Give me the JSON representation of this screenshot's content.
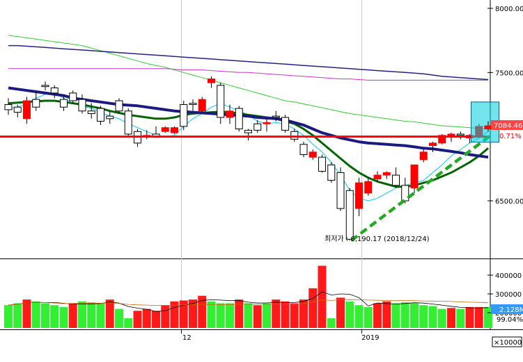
{
  "colors": {
    "up": "#ff0000",
    "down": "#ffffff",
    "down_border": "#000000",
    "vol_up": "#ff1a1a",
    "vol_down": "#33ee33",
    "hline": "#ff0000",
    "trend": "#22aa22",
    "ma5": "#00c8ff",
    "ma20": "#006400",
    "ma60_dark": "#1a1a80",
    "ma120": "#33cc33",
    "ma240": "#cc33cc",
    "ma_dark_long": "#222288",
    "price_tag_bg": "#ff4444",
    "vol_tag_bg": "#3399ff"
  },
  "labels": {
    "low_annotation": "최저가 : 6,190.17 (2018/12/24)",
    "price_tag": "7084.46",
    "price_change": "0.71%",
    "vol_tag": "2.128M",
    "vol_pct": "99.04%",
    "vol_unit": "×10000",
    "x_tick_12": "12",
    "x_tick_2019": "2019"
  },
  "chart_data": [
    {
      "type": "candlestick",
      "y_ticks": [
        "8000.00",
        "7500.00",
        "6500.00"
      ],
      "y_ticks_values": [
        8000,
        7500,
        6500
      ],
      "ylim": [
        6100,
        8100
      ],
      "hline": 7000,
      "trendline": [
        [
          0,
          6190
        ],
        [
          1,
          6980
        ]
      ],
      "low_point": 6190.17,
      "x_ticks": [
        "12",
        "2019"
      ],
      "candles": [
        [
          7250,
          7300,
          7170,
          7210
        ],
        [
          7230,
          7250,
          7150,
          7190
        ],
        [
          7140,
          7310,
          7100,
          7280
        ],
        [
          7290,
          7350,
          7200,
          7230
        ],
        [
          7400,
          7430,
          7360,
          7390
        ],
        [
          7380,
          7400,
          7300,
          7340
        ],
        [
          7290,
          7320,
          7200,
          7230
        ],
        [
          7340,
          7360,
          7260,
          7280
        ],
        [
          7290,
          7330,
          7180,
          7200
        ],
        [
          7200,
          7260,
          7140,
          7180
        ],
        [
          7220,
          7240,
          7090,
          7120
        ],
        [
          7160,
          7200,
          7100,
          7140
        ],
        [
          7280,
          7300,
          7180,
          7200
        ],
        [
          7200,
          7220,
          7000,
          7020
        ],
        [
          7040,
          7060,
          6920,
          6950
        ],
        [
          7000,
          7050,
          6980,
          7010
        ],
        [
          7020,
          7080,
          6990,
          6995
        ],
        [
          7040,
          7080,
          7030,
          7070
        ],
        [
          7030,
          7080,
          7020,
          7070
        ],
        [
          7250,
          7280,
          7050,
          7080
        ],
        [
          7260,
          7290,
          7200,
          7250
        ],
        [
          7200,
          7310,
          7190,
          7290
        ],
        [
          7420,
          7470,
          7380,
          7450
        ],
        [
          7400,
          7420,
          7100,
          7150
        ],
        [
          7150,
          7250,
          7100,
          7200
        ],
        [
          7220,
          7240,
          7040,
          7060
        ],
        [
          7050,
          7060,
          6970,
          7030
        ],
        [
          7100,
          7130,
          7030,
          7050
        ],
        [
          7100,
          7140,
          7040,
          7110
        ],
        [
          7160,
          7200,
          7120,
          7150
        ],
        [
          7150,
          7170,
          7030,
          7050
        ],
        [
          7040,
          7060,
          6960,
          6980
        ],
        [
          6940,
          6960,
          6840,
          6860
        ],
        [
          6840,
          6900,
          6820,
          6880
        ],
        [
          6840,
          6860,
          6720,
          6730
        ],
        [
          6780,
          6800,
          6640,
          6660
        ],
        [
          6720,
          6760,
          6420,
          6440
        ],
        [
          6580,
          6600,
          6190,
          6200
        ],
        [
          6440,
          6680,
          6380,
          6640
        ],
        [
          6560,
          6680,
          6540,
          6650
        ],
        [
          6670,
          6730,
          6650,
          6700
        ],
        [
          6700,
          6730,
          6670,
          6720
        ],
        [
          6700,
          6760,
          6600,
          6620
        ],
        [
          6620,
          6680,
          6480,
          6500
        ],
        [
          6600,
          6780,
          6560,
          6780
        ],
        [
          6820,
          6900,
          6800,
          6880
        ],
        [
          6930,
          6960,
          6880,
          6950
        ],
        [
          6950,
          7020,
          6940,
          7010
        ],
        [
          7000,
          7030,
          6960,
          7020
        ],
        [
          7020,
          7040,
          6980,
          7010
        ],
        [
          6990,
          7020,
          6950,
          7010
        ],
        [
          7000,
          7100,
          6990,
          7080
        ],
        [
          7060,
          7120,
          7040,
          7084
        ]
      ],
      "ma_series": [
        {
          "color": "ma5",
          "values": [
            7220,
            7230,
            7260,
            7300,
            7330,
            7340,
            7300,
            7260,
            7240,
            7220,
            7190,
            7160,
            7140,
            7100,
            7070,
            7040,
            7010,
            7000,
            7010,
            7080,
            7140,
            7180,
            7230,
            7260,
            7230,
            7200,
            7170,
            7120,
            7100,
            7110,
            7100,
            7060,
            7010,
            6940,
            6880,
            6800,
            6700,
            6580,
            6520,
            6500,
            6520,
            6560,
            6600,
            6620,
            6640,
            6660,
            6720,
            6780,
            6850,
            6900,
            6950,
            6990,
            7040
          ]
        },
        {
          "color": "ma20",
          "values": [
            7260,
            7265,
            7270,
            7275,
            7280,
            7280,
            7270,
            7260,
            7250,
            7235,
            7220,
            7200,
            7185,
            7170,
            7160,
            7150,
            7140,
            7140,
            7150,
            7170,
            7180,
            7185,
            7190,
            7195,
            7190,
            7180,
            7170,
            7160,
            7150,
            7140,
            7120,
            7100,
            7060,
            7010,
            6950,
            6890,
            6830,
            6770,
            6720,
            6680,
            6650,
            6630,
            6610,
            6610,
            6620,
            6640,
            6660,
            6690,
            6720,
            6760,
            6800,
            6850,
            6910
          ]
        },
        {
          "color": "ma60_dark",
          "values": [
            7380,
            7370,
            7360,
            7350,
            7340,
            7330,
            7320,
            7300,
            7290,
            7280,
            7270,
            7260,
            7250,
            7245,
            7240,
            7230,
            7220,
            7210,
            7200,
            7195,
            7190,
            7185,
            7180,
            7175,
            7170,
            7165,
            7160,
            7150,
            7145,
            7140,
            7130,
            7110,
            7090,
            7060,
            7030,
            7010,
            6990,
            6975,
            6960,
            6950,
            6945,
            6940,
            6935,
            6930,
            6920,
            6910,
            6905,
            6895,
            6885,
            6875,
            6860,
            6850,
            6840
          ]
        },
        {
          "color": "ma120",
          "values": [
            7790,
            7780,
            7770,
            7760,
            7750,
            7740,
            7730,
            7720,
            7710,
            7690,
            7670,
            7650,
            7630,
            7610,
            7590,
            7570,
            7555,
            7540,
            7520,
            7500,
            7480,
            7460,
            7440,
            7420,
            7400,
            7380,
            7360,
            7340,
            7320,
            7300,
            7280,
            7270,
            7255,
            7240,
            7225,
            7210,
            7195,
            7180,
            7170,
            7160,
            7150,
            7140,
            7130,
            7120,
            7115,
            7105,
            7095,
            7085,
            7080,
            7075,
            7070,
            7065,
            7060
          ]
        },
        {
          "color": "ma240",
          "values": [
            7530,
            7530,
            7530,
            7530,
            7530,
            7530,
            7530,
            7530,
            7530,
            7530,
            7530,
            7530,
            7530,
            7530,
            7530,
            7530,
            7530,
            7530,
            7525,
            7520,
            7520,
            7520,
            7515,
            7510,
            7505,
            7500,
            7500,
            7495,
            7490,
            7485,
            7480,
            7475,
            7470,
            7465,
            7460,
            7455,
            7450,
            7450,
            7445,
            7440,
            7440,
            7440,
            7440,
            7440,
            7440,
            7440,
            7440,
            7440,
            7440,
            7440,
            7440,
            7440,
            7440
          ]
        },
        {
          "color": "ma_dark_long",
          "values": [
            7710,
            7710,
            7705,
            7700,
            7695,
            7690,
            7685,
            7680,
            7675,
            7670,
            7665,
            7660,
            7655,
            7650,
            7645,
            7640,
            7635,
            7630,
            7625,
            7620,
            7615,
            7610,
            7605,
            7600,
            7595,
            7590,
            7585,
            7580,
            7575,
            7570,
            7565,
            7560,
            7555,
            7550,
            7545,
            7540,
            7535,
            7530,
            7525,
            7520,
            7515,
            7510,
            7505,
            7500,
            7495,
            7490,
            7480,
            7470,
            7465,
            7460,
            7455,
            7450,
            7445
          ]
        }
      ]
    },
    {
      "type": "bar",
      "y_ticks": [
        "400000",
        "300000",
        "200000"
      ],
      "y_ticks_values": [
        400000,
        300000,
        200000
      ],
      "ylim": [
        50000,
        460000
      ],
      "volumes": [
        [
          240000,
          0
        ],
        [
          250000,
          0
        ],
        [
          270000,
          1
        ],
        [
          260000,
          0
        ],
        [
          250000,
          0
        ],
        [
          240000,
          0
        ],
        [
          230000,
          0
        ],
        [
          250000,
          1
        ],
        [
          260000,
          0
        ],
        [
          255000,
          0
        ],
        [
          250000,
          0
        ],
        [
          270000,
          1
        ],
        [
          220000,
          0
        ],
        [
          170000,
          0
        ],
        [
          210000,
          1
        ],
        [
          220000,
          1
        ],
        [
          210000,
          1
        ],
        [
          240000,
          1
        ],
        [
          260000,
          1
        ],
        [
          265000,
          1
        ],
        [
          270000,
          1
        ],
        [
          290000,
          1
        ],
        [
          260000,
          0
        ],
        [
          250000,
          0
        ],
        [
          250000,
          0
        ],
        [
          270000,
          1
        ],
        [
          250000,
          0
        ],
        [
          240000,
          1
        ],
        [
          250000,
          0
        ],
        [
          270000,
          1
        ],
        [
          260000,
          1
        ],
        [
          250000,
          1
        ],
        [
          270000,
          1
        ],
        [
          330000,
          1
        ],
        [
          450000,
          1
        ],
        [
          170000,
          0
        ],
        [
          280000,
          1
        ],
        [
          260000,
          0
        ],
        [
          240000,
          0
        ],
        [
          230000,
          0
        ],
        [
          250000,
          1
        ],
        [
          260000,
          1
        ],
        [
          250000,
          0
        ],
        [
          255000,
          0
        ],
        [
          250000,
          0
        ],
        [
          240000,
          0
        ],
        [
          235000,
          0
        ],
        [
          220000,
          0
        ],
        [
          225000,
          1
        ],
        [
          220000,
          0
        ],
        [
          230000,
          1
        ],
        [
          230000,
          1
        ],
        [
          230000,
          0
        ]
      ]
    }
  ]
}
